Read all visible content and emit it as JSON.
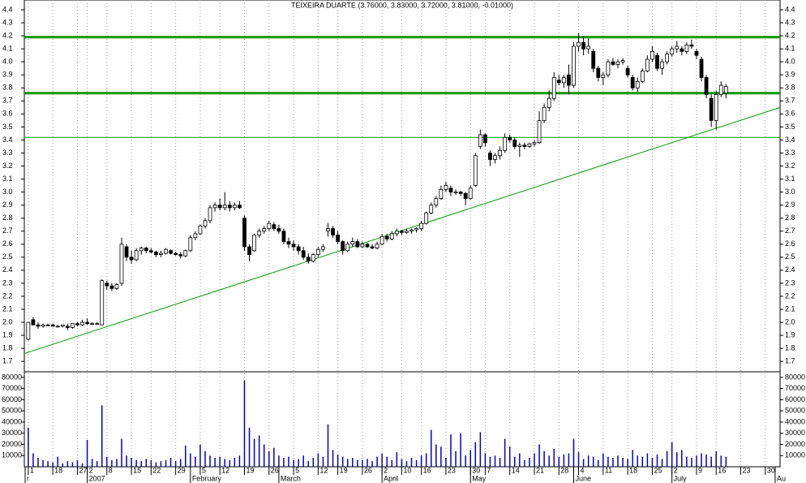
{
  "chart_data": {
    "type": "candlestick",
    "title": "TEIXEIRA DUARTE (3.76000, 3.83000, 3.72000, 3.81000, -0.01000)",
    "ohlc": [
      [
        1.87,
        2.0,
        1.86,
        2.0
      ],
      [
        2.02,
        2.04,
        1.98,
        1.98
      ],
      [
        1.98,
        2.0,
        1.95,
        1.97
      ],
      [
        1.97,
        1.99,
        1.96,
        1.98
      ],
      [
        1.98,
        1.99,
        1.97,
        1.98
      ],
      [
        1.98,
        1.99,
        1.97,
        1.97
      ],
      [
        1.97,
        1.98,
        1.96,
        1.97
      ],
      [
        1.97,
        1.98,
        1.96,
        1.98
      ],
      [
        1.97,
        1.99,
        1.94,
        1.96
      ],
      [
        1.96,
        1.99,
        1.95,
        1.99
      ],
      [
        1.99,
        2.0,
        1.97,
        1.98
      ],
      [
        1.98,
        2.02,
        1.97,
        2.0
      ],
      [
        2.0,
        2.03,
        1.98,
        1.99
      ],
      [
        1.99,
        2.0,
        1.98,
        1.99
      ],
      [
        1.99,
        2.0,
        1.98,
        1.99
      ],
      [
        1.98,
        2.33,
        1.98,
        2.32
      ],
      [
        2.3,
        2.32,
        2.25,
        2.28
      ],
      [
        2.28,
        2.3,
        2.24,
        2.26
      ],
      [
        2.26,
        2.3,
        2.25,
        2.29
      ],
      [
        2.3,
        2.65,
        2.28,
        2.6
      ],
      [
        2.58,
        2.6,
        2.47,
        2.5
      ],
      [
        2.5,
        2.55,
        2.45,
        2.48
      ],
      [
        2.48,
        2.57,
        2.47,
        2.55
      ],
      [
        2.55,
        2.58,
        2.52,
        2.57
      ],
      [
        2.57,
        2.58,
        2.53,
        2.55
      ],
      [
        2.55,
        2.57,
        2.53,
        2.54
      ],
      [
        2.54,
        2.55,
        2.5,
        2.52
      ],
      [
        2.52,
        2.55,
        2.5,
        2.53
      ],
      [
        2.53,
        2.57,
        2.52,
        2.56
      ],
      [
        2.55,
        2.56,
        2.52,
        2.53
      ],
      [
        2.53,
        2.54,
        2.51,
        2.52
      ],
      [
        2.52,
        2.54,
        2.49,
        2.51
      ],
      [
        2.51,
        2.56,
        2.5,
        2.55
      ],
      [
        2.55,
        2.67,
        2.54,
        2.65
      ],
      [
        2.65,
        2.7,
        2.63,
        2.68
      ],
      [
        2.68,
        2.75,
        2.67,
        2.74
      ],
      [
        2.74,
        2.8,
        2.72,
        2.78
      ],
      [
        2.78,
        2.9,
        2.76,
        2.88
      ],
      [
        2.88,
        2.92,
        2.85,
        2.9
      ],
      [
        2.9,
        2.95,
        2.86,
        2.88
      ],
      [
        2.88,
        3.0,
        2.86,
        2.9
      ],
      [
        2.9,
        2.93,
        2.85,
        2.88
      ],
      [
        2.88,
        2.92,
        2.86,
        2.9
      ],
      [
        2.9,
        2.93,
        2.87,
        2.88
      ],
      [
        2.8,
        2.82,
        2.55,
        2.58
      ],
      [
        2.58,
        2.6,
        2.47,
        2.52
      ],
      [
        2.55,
        2.68,
        2.54,
        2.67
      ],
      [
        2.67,
        2.72,
        2.65,
        2.7
      ],
      [
        2.7,
        2.74,
        2.68,
        2.72
      ],
      [
        2.72,
        2.78,
        2.7,
        2.76
      ],
      [
        2.75,
        2.77,
        2.7,
        2.72
      ],
      [
        2.72,
        2.75,
        2.68,
        2.7
      ],
      [
        2.7,
        2.72,
        2.6,
        2.62
      ],
      [
        2.62,
        2.65,
        2.57,
        2.6
      ],
      [
        2.6,
        2.63,
        2.55,
        2.58
      ],
      [
        2.58,
        2.6,
        2.52,
        2.55
      ],
      [
        2.55,
        2.58,
        2.48,
        2.5
      ],
      [
        2.5,
        2.53,
        2.45,
        2.47
      ],
      [
        2.47,
        2.53,
        2.46,
        2.52
      ],
      [
        2.52,
        2.58,
        2.5,
        2.56
      ],
      [
        2.56,
        2.6,
        2.54,
        2.58
      ],
      [
        2.7,
        2.76,
        2.66,
        2.72
      ],
      [
        2.72,
        2.74,
        2.65,
        2.67
      ],
      [
        2.67,
        2.7,
        2.6,
        2.62
      ],
      [
        2.62,
        2.63,
        2.52,
        2.55
      ],
      [
        2.55,
        2.62,
        2.54,
        2.6
      ],
      [
        2.6,
        2.65,
        2.58,
        2.62
      ],
      [
        2.62,
        2.64,
        2.57,
        2.58
      ],
      [
        2.58,
        2.62,
        2.57,
        2.6
      ],
      [
        2.6,
        2.61,
        2.57,
        2.58
      ],
      [
        2.58,
        2.6,
        2.56,
        2.57
      ],
      [
        2.57,
        2.62,
        2.56,
        2.6
      ],
      [
        2.6,
        2.68,
        2.59,
        2.66
      ],
      [
        2.66,
        2.68,
        2.62,
        2.64
      ],
      [
        2.64,
        2.7,
        2.63,
        2.68
      ],
      [
        2.68,
        2.72,
        2.66,
        2.7
      ],
      [
        2.7,
        2.71,
        2.67,
        2.69
      ],
      [
        2.69,
        2.72,
        2.68,
        2.7
      ],
      [
        2.7,
        2.72,
        2.68,
        2.71
      ],
      [
        2.71,
        2.73,
        2.69,
        2.72
      ],
      [
        2.72,
        2.78,
        2.7,
        2.76
      ],
      [
        2.76,
        2.85,
        2.75,
        2.84
      ],
      [
        2.84,
        2.92,
        2.83,
        2.9
      ],
      [
        2.9,
        2.97,
        2.88,
        2.95
      ],
      [
        2.95,
        3.05,
        2.94,
        3.02
      ],
      [
        3.02,
        3.08,
        3.0,
        3.05
      ],
      [
        3.03,
        3.05,
        2.97,
        3.0
      ],
      [
        3.0,
        3.02,
        2.98,
        3.0
      ],
      [
        3.0,
        3.01,
        2.97,
        2.99
      ],
      [
        2.99,
        3.0,
        2.9,
        2.95
      ],
      [
        2.95,
        3.05,
        2.94,
        3.03
      ],
      [
        3.05,
        3.3,
        3.04,
        3.28
      ],
      [
        3.35,
        3.48,
        3.33,
        3.44
      ],
      [
        3.44,
        3.45,
        3.35,
        3.38
      ],
      [
        3.3,
        3.32,
        3.2,
        3.25
      ],
      [
        3.25,
        3.3,
        3.22,
        3.28
      ],
      [
        3.28,
        3.35,
        3.25,
        3.32
      ],
      [
        3.32,
        3.45,
        3.3,
        3.42
      ],
      [
        3.42,
        3.44,
        3.38,
        3.4
      ],
      [
        3.4,
        3.42,
        3.33,
        3.35
      ],
      [
        3.35,
        3.38,
        3.27,
        3.36
      ],
      [
        3.36,
        3.38,
        3.33,
        3.35
      ],
      [
        3.35,
        3.38,
        3.34,
        3.37
      ],
      [
        3.37,
        3.4,
        3.35,
        3.38
      ],
      [
        3.38,
        3.62,
        3.37,
        3.55
      ],
      [
        3.55,
        3.68,
        3.53,
        3.65
      ],
      [
        3.65,
        3.78,
        3.62,
        3.72
      ],
      [
        3.72,
        3.92,
        3.7,
        3.88
      ],
      [
        3.86,
        3.9,
        3.82,
        3.84
      ],
      [
        3.84,
        3.9,
        3.8,
        3.88
      ],
      [
        3.9,
        3.98,
        3.75,
        3.82
      ],
      [
        3.82,
        4.15,
        3.8,
        4.12
      ],
      [
        4.12,
        4.22,
        4.08,
        4.15
      ],
      [
        4.15,
        4.2,
        4.05,
        4.1
      ],
      [
        4.1,
        4.18,
        4.06,
        4.12
      ],
      [
        4.08,
        4.1,
        3.92,
        3.95
      ],
      [
        3.95,
        3.97,
        3.85,
        3.88
      ],
      [
        3.88,
        3.92,
        3.82,
        3.9
      ],
      [
        3.9,
        4.02,
        3.88,
        4.0
      ],
      [
        4.0,
        4.03,
        3.97,
        3.98
      ],
      [
        3.98,
        4.02,
        3.95,
        4.0
      ],
      [
        4.0,
        4.03,
        3.98,
        4.01
      ],
      [
        3.95,
        3.97,
        3.88,
        3.9
      ],
      [
        3.88,
        3.9,
        3.78,
        3.8
      ],
      [
        3.8,
        3.88,
        3.77,
        3.85
      ],
      [
        3.85,
        3.95,
        3.84,
        3.93
      ],
      [
        3.93,
        4.05,
        3.92,
        4.02
      ],
      [
        4.02,
        4.12,
        4.0,
        4.08
      ],
      [
        4.05,
        4.07,
        3.93,
        3.95
      ],
      [
        3.95,
        4.02,
        3.9,
        4.0
      ],
      [
        4.0,
        4.08,
        3.98,
        4.06
      ],
      [
        4.06,
        4.12,
        4.04,
        4.1
      ],
      [
        4.1,
        4.16,
        4.07,
        4.12
      ],
      [
        4.1,
        4.12,
        4.05,
        4.08
      ],
      [
        4.08,
        4.15,
        4.06,
        4.13
      ],
      [
        4.13,
        4.17,
        4.1,
        4.12
      ],
      [
        4.08,
        4.1,
        4.02,
        4.05
      ],
      [
        4.02,
        4.04,
        3.85,
        3.88
      ],
      [
        3.88,
        3.9,
        3.72,
        3.75
      ],
      [
        3.72,
        3.75,
        3.5,
        3.55
      ],
      [
        3.55,
        3.78,
        3.48,
        3.75
      ],
      [
        3.75,
        3.85,
        3.73,
        3.82
      ],
      [
        3.76,
        3.83,
        3.72,
        3.81
      ]
    ],
    "volume": [
      35000,
      12000,
      8000,
      6000,
      5000,
      4000,
      9000,
      3000,
      5000,
      4000,
      6000,
      3000,
      24000,
      7000,
      5000,
      55000,
      9000,
      6000,
      7000,
      25000,
      10000,
      8000,
      6000,
      5000,
      7000,
      6000,
      4000,
      5000,
      6000,
      8000,
      5000,
      7000,
      19000,
      12000,
      9000,
      20000,
      14000,
      10000,
      8000,
      9000,
      7000,
      6000,
      8000,
      10000,
      77000,
      35000,
      25000,
      28000,
      20000,
      14000,
      17000,
      10000,
      8000,
      9000,
      6000,
      7000,
      10000,
      5000,
      8000,
      12000,
      9000,
      38000,
      15000,
      11000,
      9000,
      7000,
      8000,
      6000,
      6000,
      7000,
      5000,
      9000,
      12000,
      9000,
      6000,
      13000,
      7000,
      5000,
      8000,
      6000,
      10000,
      12000,
      33000,
      20000,
      18000,
      8000,
      29000,
      14000,
      30000,
      10000,
      15000,
      22000,
      31000,
      12000,
      9000,
      10000,
      8000,
      25000,
      18000,
      9000,
      12000,
      6000,
      8000,
      12000,
      20000,
      14000,
      10000,
      16000,
      9000,
      11000,
      12000,
      25000,
      13000,
      7000,
      10000,
      9000,
      6000,
      12000,
      9000,
      8000,
      10000,
      8000,
      7000,
      15000,
      10000,
      9000,
      12000,
      8000,
      11000,
      7000,
      14000,
      22000,
      13000,
      15000,
      9000,
      8000,
      10000,
      12000,
      11000,
      9000,
      14000,
      10000,
      9000
    ],
    "xlim": [
      -0.8,
      153
    ],
    "xticks": [
      {
        "value": 0,
        "label": "1"
      },
      {
        "value": 5,
        "label": "18"
      },
      {
        "value": 10,
        "label": "27"
      },
      {
        "value": 12,
        "label": "2"
      },
      {
        "value": 16,
        "label": "8"
      },
      {
        "value": 21,
        "label": "15"
      },
      {
        "value": 25,
        "label": "22"
      },
      {
        "value": 30,
        "label": "29"
      },
      {
        "value": 35,
        "label": "5"
      },
      {
        "value": 39,
        "label": "12"
      },
      {
        "value": 44,
        "label": "19"
      },
      {
        "value": 49,
        "label": "26"
      },
      {
        "value": 54,
        "label": "5"
      },
      {
        "value": 59,
        "label": "12"
      },
      {
        "value": 63,
        "label": "19"
      },
      {
        "value": 68,
        "label": "26"
      },
      {
        "value": 72,
        "label": "2"
      },
      {
        "value": 76,
        "label": "10"
      },
      {
        "value": 80,
        "label": "16"
      },
      {
        "value": 85,
        "label": "23"
      },
      {
        "value": 90,
        "label": "30"
      },
      {
        "value": 93,
        "label": "7"
      },
      {
        "value": 98,
        "label": "14"
      },
      {
        "value": 103,
        "label": "21"
      },
      {
        "value": 108,
        "label": "28"
      },
      {
        "value": 112,
        "label": "4"
      },
      {
        "value": 117,
        "label": "11"
      },
      {
        "value": 122,
        "label": "18"
      },
      {
        "value": 127,
        "label": "25"
      },
      {
        "value": 131,
        "label": "2"
      },
      {
        "value": 136,
        "label": "9"
      },
      {
        "value": 140,
        "label": "16"
      },
      {
        "value": 145,
        "label": "23"
      },
      {
        "value": 150,
        "label": "30"
      }
    ],
    "months": [
      {
        "value": -0.8,
        "label": "r"
      },
      {
        "value": 12,
        "label": "2007"
      },
      {
        "value": 33,
        "label": "February"
      },
      {
        "value": 51,
        "label": "March"
      },
      {
        "value": 72,
        "label": "April"
      },
      {
        "value": 90,
        "label": "May"
      },
      {
        "value": 111,
        "label": "June"
      },
      {
        "value": 131,
        "label": "July"
      },
      {
        "value": 152,
        "label": "Au"
      }
    ],
    "ylim": [
      1.62,
      4.475
    ],
    "yticks": [
      1.7,
      1.8,
      1.9,
      {
        "value": 2,
        "label": "2.0"
      },
      2.1,
      2.2,
      2.3,
      2.4,
      2.5,
      2.6,
      2.7,
      2.8,
      2.9,
      {
        "value": 3,
        "label": "3.0"
      },
      3.1,
      3.2,
      3.3,
      3.4,
      3.5,
      3.6,
      3.7,
      3.8,
      3.9,
      {
        "value": 4,
        "label": "4.0"
      },
      4.1,
      4.2,
      4.3,
      4.4
    ],
    "vlim": [
      0,
      85000
    ],
    "vticks": [
      10000,
      20000,
      30000,
      40000,
      50000,
      60000,
      70000,
      80000
    ],
    "hlines": [
      {
        "value": 4.19,
        "thick": true
      },
      {
        "value": 3.76,
        "thick": true
      },
      {
        "value": 3.42,
        "thick": false
      }
    ],
    "trendline": {
      "x": [
        -0.8,
        153
      ],
      "y": [
        1.76,
        3.65
      ]
    },
    "colors": {
      "up": "#ffffff",
      "down": "#000000",
      "volume": "#0000cc",
      "lines": "#009900"
    }
  }
}
